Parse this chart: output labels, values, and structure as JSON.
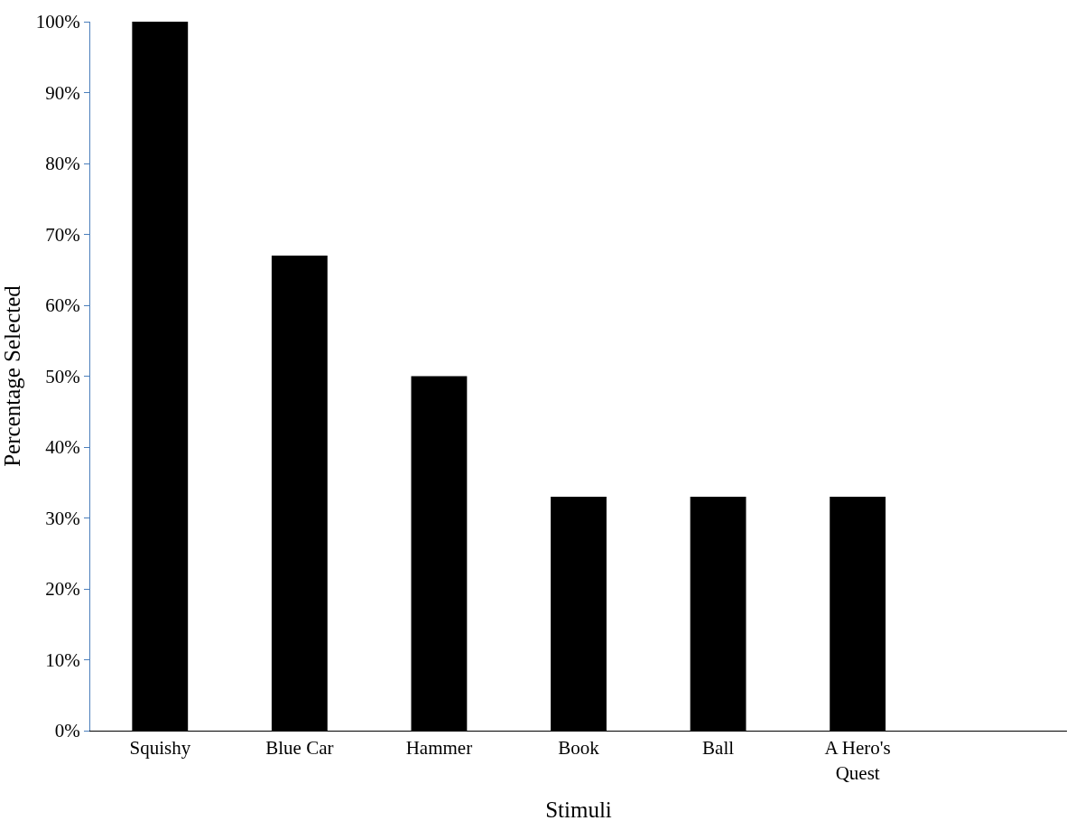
{
  "chart_data": {
    "type": "bar",
    "xlabel": "Stimuli",
    "ylabel": "Percentage Selected",
    "categories": [
      "Squishy",
      "Blue Car",
      "Hammer",
      "Book",
      "Ball",
      "A Hero's Quest",
      null
    ],
    "values": [
      100,
      67,
      50,
      33,
      33,
      33,
      0
    ],
    "color": "#000000",
    "ylim": [
      0,
      100
    ],
    "yticks": [
      {
        "value": 0,
        "label": "0%"
      },
      {
        "value": 10,
        "label": "10%"
      },
      {
        "value": 20,
        "label": "20%"
      },
      {
        "value": 30,
        "label": "30%"
      },
      {
        "value": 40,
        "label": "40%"
      },
      {
        "value": 50,
        "label": "50%"
      },
      {
        "value": 60,
        "label": "60%"
      },
      {
        "value": 70,
        "label": "70%"
      },
      {
        "value": 80,
        "label": "80%"
      },
      {
        "value": 90,
        "label": "90%"
      },
      {
        "value": 100,
        "label": "100%"
      }
    ]
  }
}
